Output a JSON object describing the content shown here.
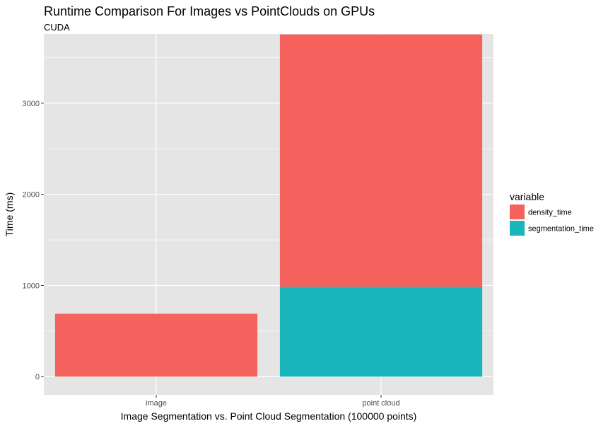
{
  "chart_data": {
    "type": "bar",
    "stacked": true,
    "title": "Runtime Comparison For Images vs PointClouds on GPUs",
    "subtitle": "CUDA",
    "xlabel": "Image Segmentation vs. Point Cloud Segmentation (100000 points)",
    "ylabel": "Time (ms)",
    "categories": [
      "image",
      "point cloud"
    ],
    "series": [
      {
        "name": "segmentation_time",
        "values": [
          0,
          985
        ],
        "color": "#19B5BA"
      },
      {
        "name": "density_time",
        "values": [
          690,
          2770
        ],
        "color": "#F5625D"
      }
    ],
    "legend_title": "variable",
    "legend_order": [
      "density_time",
      "segmentation_time"
    ],
    "ylim": [
      -200,
      3760
    ],
    "yticks": [
      0,
      1000,
      2000,
      3000
    ],
    "grid": true,
    "legend_position": "right",
    "panel_color": "#E5E5E5",
    "grid_color": "#FFFFFF"
  }
}
